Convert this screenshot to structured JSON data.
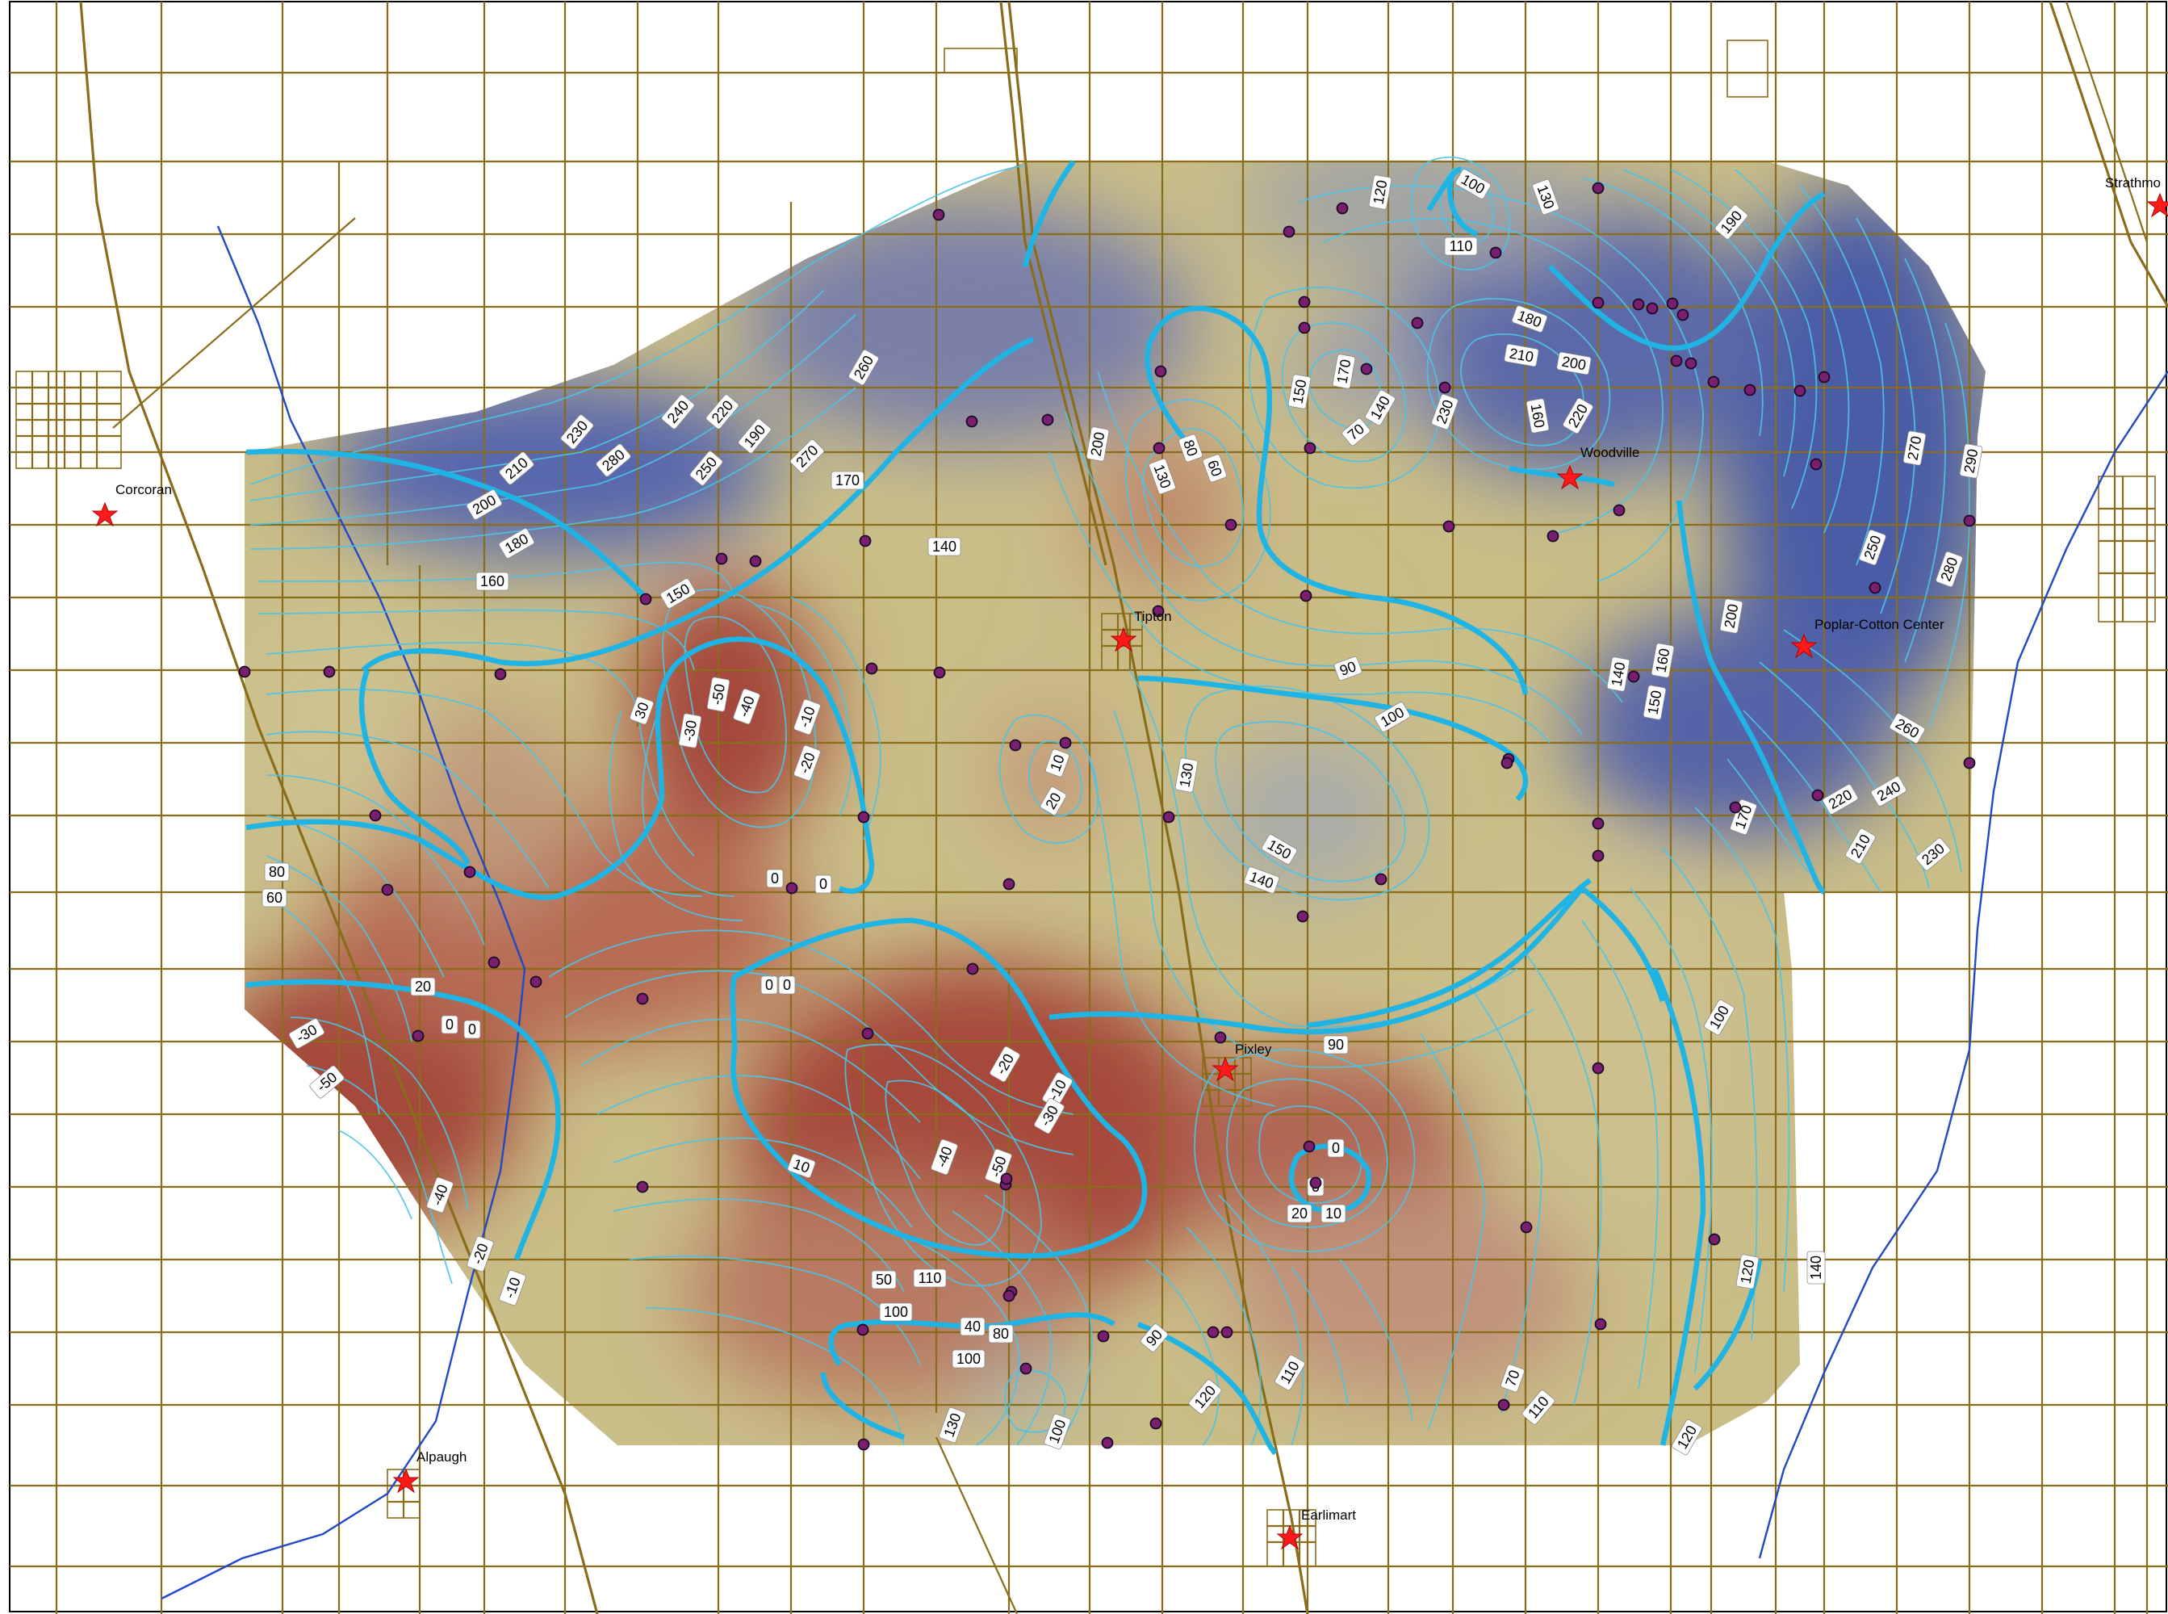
{
  "colors": {
    "road": "#8a6d1a",
    "canal": "#2249c4",
    "contour": "#4cc3e6",
    "contour_major": "#1fb4e4",
    "well": "#7a1e6e",
    "town_marker": "#ff1a1a",
    "surface_low": "#a84a3c",
    "surface_mid": "#c9bf8a",
    "surface_high": "#4a5ea8"
  },
  "towns": [
    {
      "name": "Corcoran"
    },
    {
      "name": "Tipton"
    },
    {
      "name": "Woodville"
    },
    {
      "name": "Poplar-Cotton Center"
    },
    {
      "name": "Pixley"
    },
    {
      "name": "Alpaugh"
    },
    {
      "name": "Earlimart"
    },
    {
      "name": "Strathmo"
    }
  ],
  "contour_labels": [
    "100",
    "130",
    "120",
    "110",
    "190",
    "180",
    "210",
    "200",
    "150",
    "170",
    "140",
    "230",
    "220",
    "160",
    "70",
    "80",
    "60",
    "130",
    "200",
    "260",
    "240",
    "220",
    "190",
    "270",
    "280",
    "230",
    "250",
    "210",
    "200",
    "180",
    "160",
    "170",
    "140",
    "150",
    "90",
    "100",
    "10",
    "20",
    "-50",
    "-40",
    "-10",
    "-20",
    "-30",
    "30",
    "0",
    "0",
    "130",
    "150",
    "140",
    "160",
    "140",
    "150",
    "270",
    "290",
    "250",
    "280",
    "200",
    "260",
    "240",
    "220",
    "210",
    "230",
    "170",
    "80",
    "60",
    "20",
    "0",
    "0",
    "-30",
    "-50",
    "-40",
    "-20",
    "-10",
    "0",
    "0",
    "-20",
    "-10",
    "-30",
    "-40",
    "-50",
    "10",
    "90",
    "0",
    "0",
    "20",
    "10",
    "100",
    "110",
    "50",
    "40",
    "80",
    "90",
    "100",
    "110",
    "120",
    "130",
    "100",
    "110",
    "120",
    "70",
    "120",
    "140",
    "100"
  ]
}
